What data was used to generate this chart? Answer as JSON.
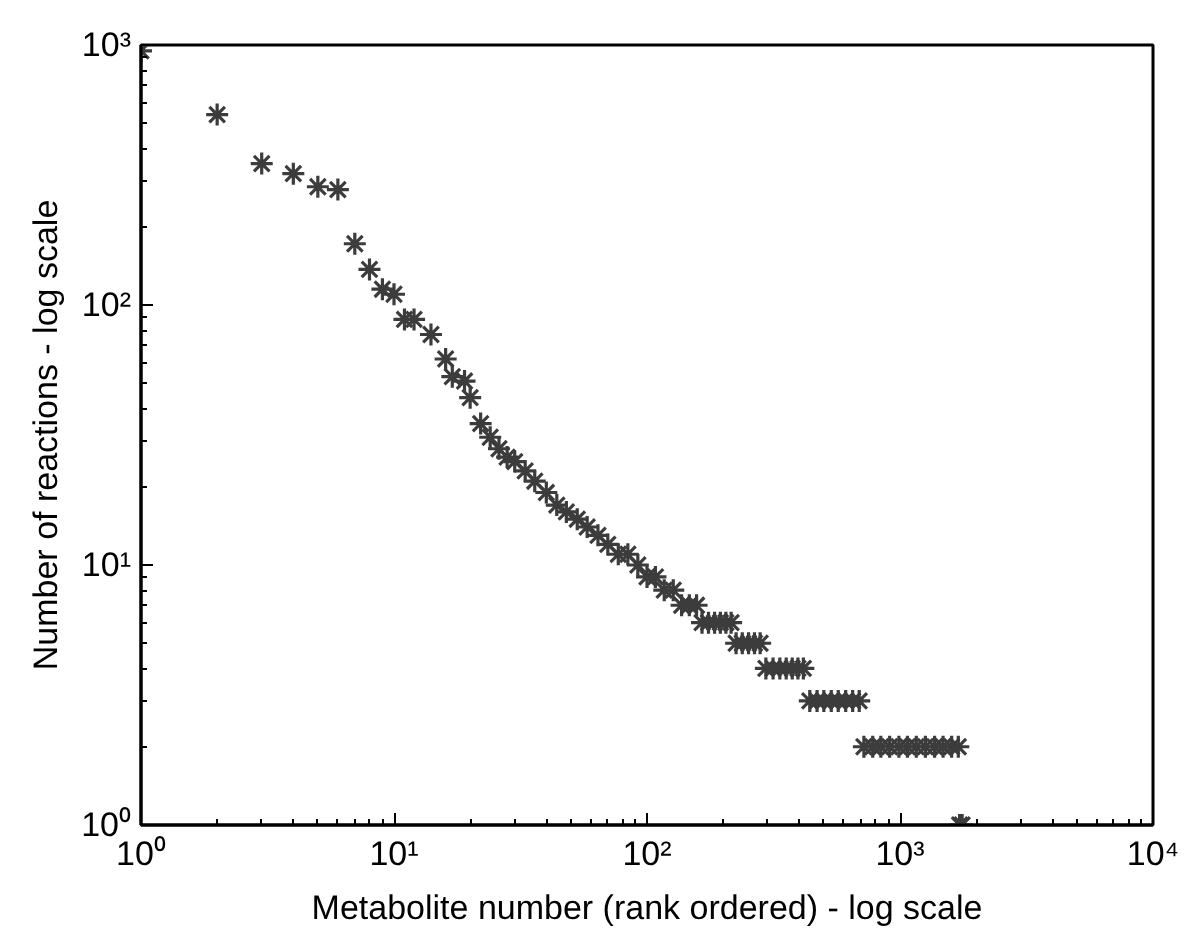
{
  "chart_data": {
    "type": "scatter",
    "xlabel": "Metabolite number (rank ordered) - log scale",
    "ylabel": "Number of reactions - log scale",
    "log": "xy",
    "grid": false,
    "marker": "cross",
    "xlim": [
      1,
      10000
    ],
    "ylim": [
      1,
      1000
    ],
    "xticks": [
      {
        "value": 1,
        "label": "10⁰"
      },
      {
        "value": 10,
        "label": "10¹"
      },
      {
        "value": 100,
        "label": "10²"
      },
      {
        "value": 1000,
        "label": "10³"
      },
      {
        "value": 10000,
        "label": "10⁴"
      }
    ],
    "yticks": [
      {
        "value": 1,
        "label": "10⁰"
      },
      {
        "value": 10,
        "label": "10¹"
      },
      {
        "value": 100,
        "label": "10²"
      },
      {
        "value": 1000,
        "label": "10³"
      }
    ],
    "series": [
      {
        "color": "#3c3c3c",
        "x": [
          1,
          2,
          3,
          4,
          5,
          6,
          7,
          8,
          9,
          10,
          11,
          12,
          14,
          16,
          17,
          19,
          20,
          22,
          24,
          26,
          28,
          30,
          33,
          36,
          40,
          44,
          48,
          53,
          58,
          64,
          70,
          77,
          84,
          92,
          100,
          108,
          117,
          127,
          137,
          147,
          157,
          165,
          175,
          185,
          195,
          205,
          215,
          225,
          238,
          252,
          266,
          280,
          295,
          315,
          335,
          355,
          375,
          395,
          415,
          440,
          470,
          500,
          535,
          570,
          610,
          650,
          690,
          720,
          780,
          840,
          910,
          990,
          1070,
          1160,
          1260,
          1370,
          1480,
          1600,
          1700,
          1720,
          1760
        ],
        "values": [
          950,
          540,
          350,
          320,
          285,
          278,
          172,
          137,
          115,
          110,
          88,
          88,
          77,
          62,
          53,
          51,
          44,
          35,
          31,
          28,
          26,
          25,
          23,
          21,
          19,
          17,
          16,
          15,
          14,
          13,
          12,
          11,
          11,
          10,
          9,
          9,
          8,
          8,
          7,
          7,
          7,
          6,
          6,
          6,
          6,
          6,
          6,
          5,
          5,
          5,
          5,
          5,
          4,
          4,
          4,
          4,
          4,
          4,
          4,
          3,
          3,
          3,
          3,
          3,
          3,
          3,
          3,
          2,
          2,
          2,
          2,
          2,
          2,
          2,
          2,
          2,
          2,
          2,
          2,
          1,
          1
        ]
      }
    ]
  }
}
